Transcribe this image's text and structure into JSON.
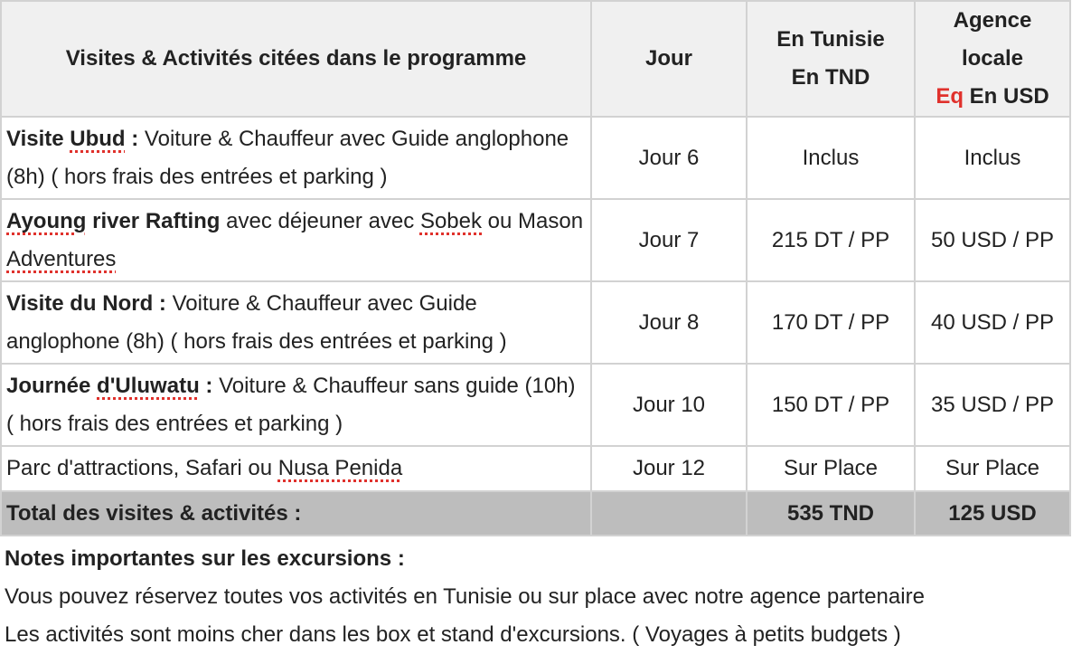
{
  "table": {
    "header": [
      [
        {
          "text": "Visites & Activités citées dans le programme"
        }
      ],
      [
        {
          "text": "Jour"
        }
      ],
      [
        {
          "text": "En Tunisie"
        },
        {
          "text": "En TND",
          "newline": true
        }
      ],
      [
        {
          "text": "Agence locale"
        },
        {
          "text": "Eq",
          "newline": true,
          "color": "#e0312c"
        },
        {
          "text": " En USD"
        }
      ]
    ],
    "rows": [
      {
        "activity": [
          {
            "text": "Visite ",
            "bold": true
          },
          {
            "text": "Ubud",
            "bold": true,
            "spell": true
          },
          {
            "text": " : ",
            "bold": true
          },
          {
            "text": "Voiture & Chauffeur avec Guide anglophone (8h) ( hors frais des entrées et parking )"
          }
        ],
        "jour": "Jour 6",
        "tnd": "Inclus",
        "usd": "Inclus"
      },
      {
        "activity": [
          {
            "text": "Ayoung",
            "bold": true,
            "spell": true
          },
          {
            "text": " river Rafting",
            "bold": true
          },
          {
            "text": " avec déjeuner avec "
          },
          {
            "text": "Sobek",
            "spell": true
          },
          {
            "text": " ou Mason "
          },
          {
            "text": "Adventures",
            "spell": true
          }
        ],
        "jour": "Jour 7",
        "tnd": "215 DT / PP",
        "usd": "50 USD / PP"
      },
      {
        "activity": [
          {
            "text": "Visite du Nord : ",
            "bold": true
          },
          {
            "text": "Voiture & Chauffeur avec Guide anglophone (8h) ( hors frais des entrées et parking )"
          }
        ],
        "jour": "Jour 8",
        "tnd": "170 DT / PP",
        "usd": "40 USD / PP"
      },
      {
        "activity": [
          {
            "text": "Journée ",
            "bold": true
          },
          {
            "text": "d'Uluwatu",
            "bold": true,
            "spell": true
          },
          {
            "text": " : ",
            "bold": true
          },
          {
            "text": "Voiture & Chauffeur sans guide (10h) ( hors frais des entrées et parking )"
          }
        ],
        "jour": "Jour 10",
        "tnd": "150 DT / PP",
        "usd": "35 USD / PP"
      },
      {
        "activity": [
          {
            "text": "Parc d'attractions, Safari ou "
          },
          {
            "text": "Nusa Penida",
            "spell": true
          }
        ],
        "jour": "Jour 12",
        "tnd": "Sur Place",
        "usd": "Sur Place"
      }
    ],
    "total": {
      "label": "Total des visites & activités :",
      "tnd": "535 TND",
      "usd": "125 USD"
    }
  },
  "notes": {
    "title": "Notes importantes sur les excursions :",
    "lines": [
      "Vous pouvez réservez toutes vos activités en Tunisie ou sur place avec notre agence partenaire",
      "Les activités sont moins cher dans les box et stand d'excursions. ( Voyages à petits budgets )"
    ]
  }
}
